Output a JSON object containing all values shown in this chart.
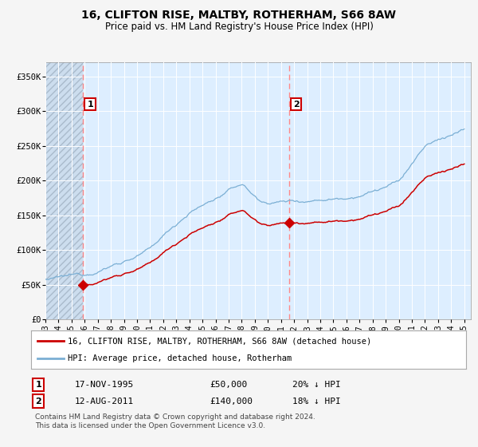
{
  "title": "16, CLIFTON RISE, MALTBY, ROTHERHAM, S66 8AW",
  "subtitle": "Price paid vs. HM Land Registry's House Price Index (HPI)",
  "ylim": [
    0,
    370000
  ],
  "yticks": [
    0,
    50000,
    100000,
    150000,
    200000,
    250000,
    300000,
    350000
  ],
  "ytick_labels": [
    "£0",
    "£50K",
    "£100K",
    "£150K",
    "£200K",
    "£250K",
    "£300K",
    "£350K"
  ],
  "hpi_color": "#7bafd4",
  "price_color": "#cc0000",
  "vline_color": "#ff8888",
  "plot_bg_color": "#ddeeff",
  "fig_bg_color": "#f5f5f5",
  "hatch_color": "#c8c8c8",
  "transaction1_date": 1995.88,
  "transaction1_price": 50000,
  "transaction2_date": 2011.62,
  "transaction2_price": 140000,
  "legend_label1": "16, CLIFTON RISE, MALTBY, ROTHERHAM, S66 8AW (detached house)",
  "legend_label2": "HPI: Average price, detached house, Rotherham",
  "footer": "Contains HM Land Registry data © Crown copyright and database right 2024.\nThis data is licensed under the Open Government Licence v3.0.",
  "xtick_labels": [
    "93",
    "94",
    "95",
    "96",
    "97",
    "98",
    "99",
    "00",
    "01",
    "02",
    "03",
    "04",
    "05",
    "06",
    "07",
    "08",
    "09",
    "10",
    "11",
    "12",
    "13",
    "14",
    "15",
    "16",
    "17",
    "18",
    "19",
    "20",
    "21",
    "22",
    "23",
    "24",
    "25"
  ],
  "xtick_years": [
    1993,
    1994,
    1995,
    1996,
    1997,
    1998,
    1999,
    2000,
    2001,
    2002,
    2003,
    2004,
    2005,
    2006,
    2007,
    2008,
    2009,
    2010,
    2011,
    2012,
    2013,
    2014,
    2015,
    2016,
    2017,
    2018,
    2019,
    2020,
    2021,
    2022,
    2023,
    2024,
    2025
  ],
  "annotation_box_color": "#cc0000",
  "marker_style": "D"
}
